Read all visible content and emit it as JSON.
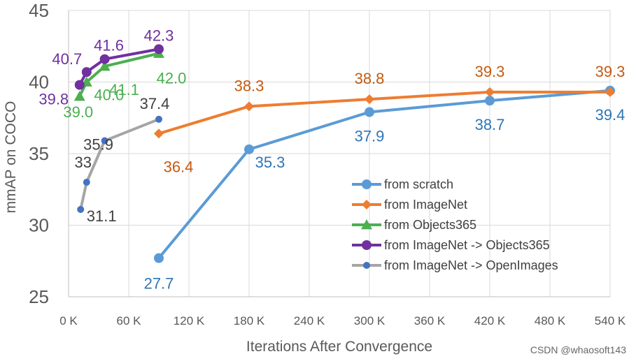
{
  "chart_data": {
    "type": "line",
    "title": "",
    "xlabel": "Iterations After Convergence",
    "ylabel": "mmAP on COCO",
    "xlim": [
      0,
      540
    ],
    "ylim": [
      25,
      45
    ],
    "grid": true,
    "legend_position": "bottom-right",
    "x_ticks": [
      "0 K",
      "60 K",
      "120 K",
      "180 K",
      "240 K",
      "300 K",
      "360 K",
      "420 K",
      "480 K",
      "540 K"
    ],
    "x_tick_values": [
      0,
      60,
      120,
      180,
      240,
      300,
      360,
      420,
      480,
      540
    ],
    "y_ticks": [
      "25",
      "30",
      "35",
      "40",
      "45"
    ],
    "y_tick_values": [
      25,
      30,
      35,
      40,
      45
    ],
    "series": [
      {
        "name": "from scratch",
        "color": "#5b9bd5",
        "label_color": "#2e75b6",
        "marker": "circle",
        "x": [
          90,
          180,
          300,
          420,
          540
        ],
        "y": [
          27.7,
          35.3,
          37.9,
          38.7,
          39.4
        ],
        "labels": [
          "27.7",
          "35.3",
          "37.9",
          "38.7",
          "39.4"
        ]
      },
      {
        "name": "from ImageNet",
        "color": "#ed7d31",
        "label_color": "#c55a11",
        "marker": "diamond",
        "x": [
          90,
          180,
          300,
          420,
          540
        ],
        "y": [
          36.4,
          38.3,
          38.8,
          39.3,
          39.3
        ],
        "labels": [
          "36.4",
          "38.3",
          "38.8",
          "39.3",
          "39.3"
        ]
      },
      {
        "name": "from Objects365",
        "color": "#4caf50",
        "label_color": "#4caf50",
        "marker": "triangle",
        "x": [
          11,
          18,
          36,
          90
        ],
        "y": [
          39.0,
          40.0,
          41.1,
          42.0
        ],
        "labels": [
          "39.0",
          "40.0",
          "41.1",
          "42.0"
        ]
      },
      {
        "name": "from ImageNet -> Objects365",
        "color": "#7030a0",
        "label_color": "#7030a0",
        "marker": "circle",
        "x": [
          11,
          18,
          36,
          90
        ],
        "y": [
          39.8,
          40.7,
          41.6,
          42.3
        ],
        "labels": [
          "39.8",
          "40.7",
          "41.6",
          "42.3"
        ]
      },
      {
        "name": "from ImageNet -> OpenImages",
        "color": "#a5a5a5",
        "label_color": "#404040",
        "marker": "circle",
        "marker_color": "#4472c4",
        "x": [
          12,
          18,
          36,
          90
        ],
        "y": [
          31.1,
          33.0,
          35.9,
          37.4
        ],
        "labels": [
          "31.1",
          "33",
          "35.9",
          "37.4"
        ]
      }
    ]
  },
  "watermark": "CSDN @whaosoft143"
}
